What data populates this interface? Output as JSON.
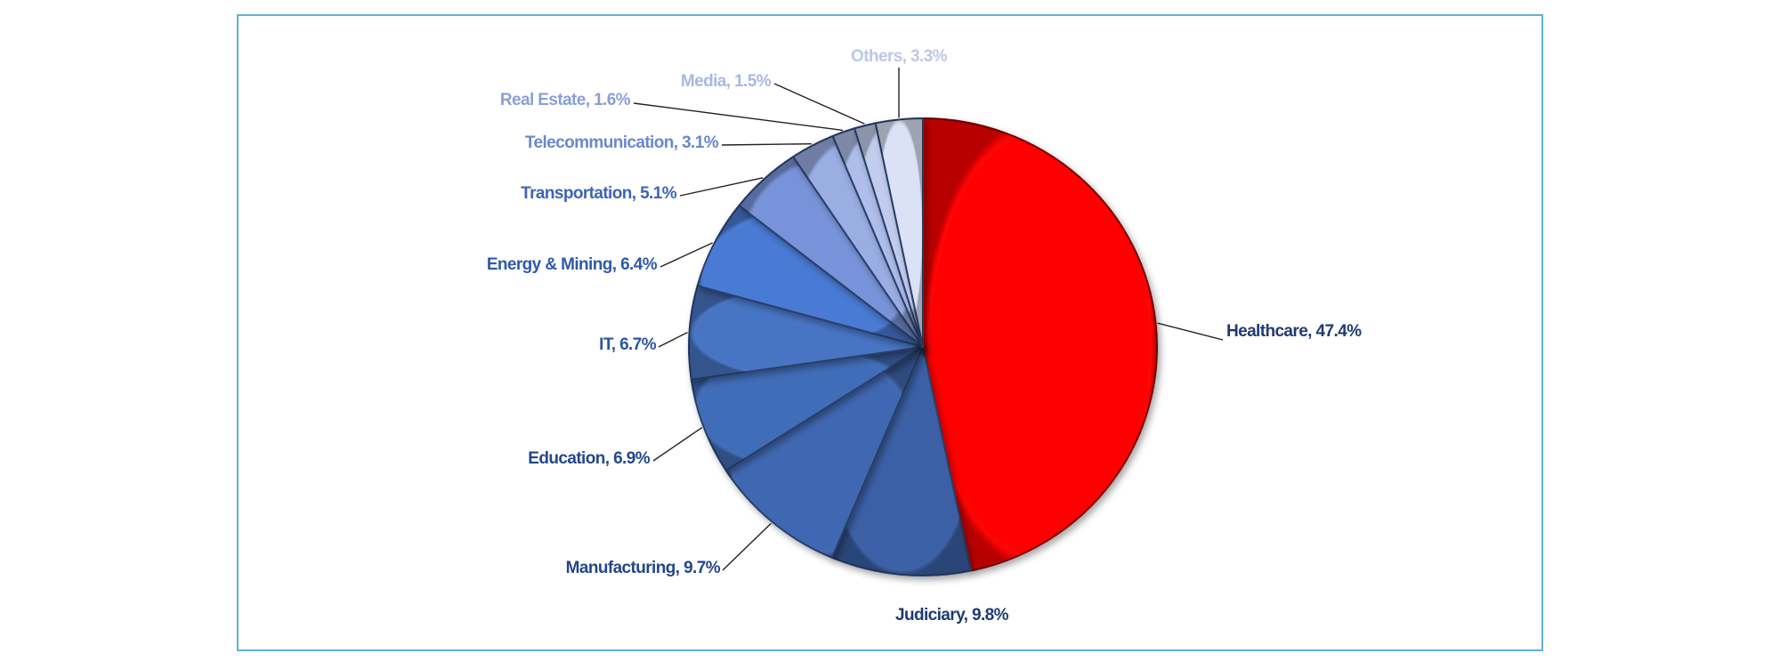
{
  "chart_data": {
    "type": "pie",
    "title": "",
    "slices": [
      {
        "label": "Healthcare, 47.4%",
        "category": "Healthcare",
        "value": 47.4,
        "color": "#ff0000",
        "label_color": "#1f3b73"
      },
      {
        "label": "Judiciary, 9.8%",
        "category": "Judiciary",
        "value": 9.8,
        "color": "#3a60a6",
        "label_color": "#1f3b73"
      },
      {
        "label": "Manufacturing, 9.7%",
        "category": "Manufacturing",
        "value": 9.7,
        "color": "#3f68b2",
        "label_color": "#24478a"
      },
      {
        "label": "Education, 6.9%",
        "category": "Education",
        "value": 6.9,
        "color": "#416db8",
        "label_color": "#24478a"
      },
      {
        "label": "IT, 6.7%",
        "category": "IT",
        "value": 6.7,
        "color": "#4674c4",
        "label_color": "#2c55a0"
      },
      {
        "label": "Energy & Mining, 6.4%",
        "category": "Energy & Mining",
        "value": 6.4,
        "color": "#4a7ad4",
        "label_color": "#2f5aa8"
      },
      {
        "label": "Transportation, 5.1%",
        "category": "Transportation",
        "value": 5.1,
        "color": "#7893d9",
        "label_color": "#3f64b3"
      },
      {
        "label": "Telecommunication, 3.1%",
        "category": "Telecommunication",
        "value": 3.1,
        "color": "#9aaee4",
        "label_color": "#6b88cc"
      },
      {
        "label": "Real Estate, 1.6%",
        "category": "Real Estate",
        "value": 1.6,
        "color": "#aebde9",
        "label_color": "#8a9fd6"
      },
      {
        "label": "Media, 1.5%",
        "category": "Media",
        "value": 1.5,
        "color": "#c2cdee",
        "label_color": "#a9b8e3"
      },
      {
        "label": "Others, 3.3%",
        "category": "Others",
        "value": 3.3,
        "color": "#dbe2f6",
        "label_color": "#bcc8ea"
      }
    ]
  }
}
